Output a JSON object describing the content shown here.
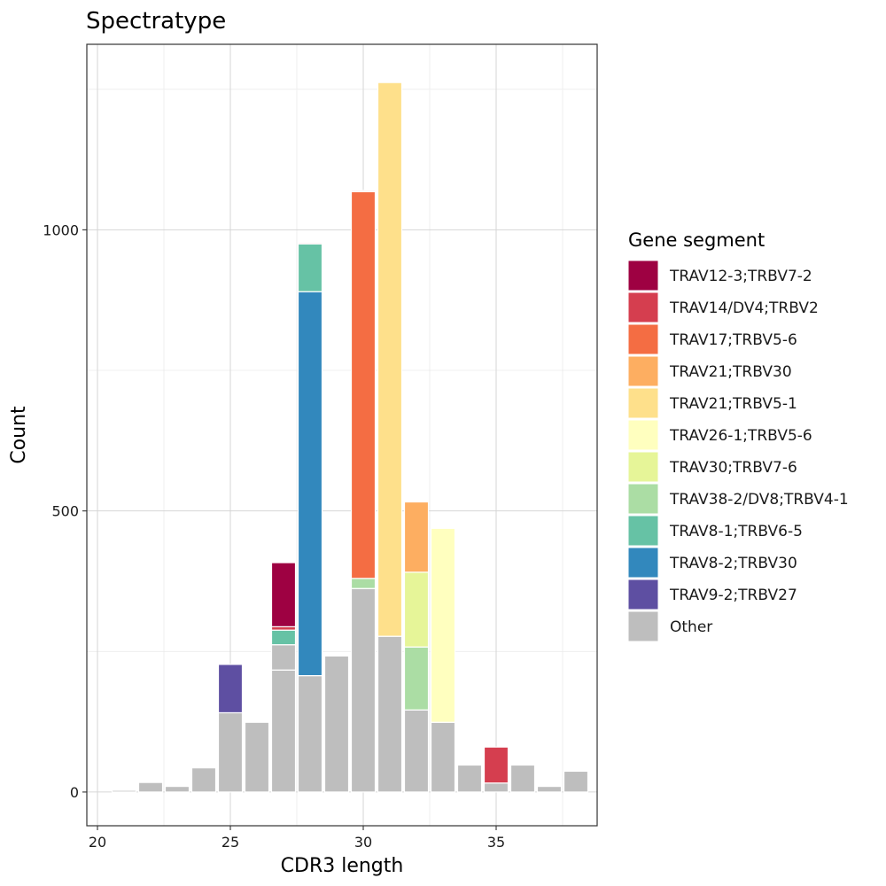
{
  "chart_data": {
    "type": "bar",
    "stacked": true,
    "title": "Spectratype",
    "xlabel": "CDR3 length",
    "ylabel": "Count",
    "xlim": [
      19.6,
      38.8
    ],
    "ylim": [
      -60,
      1330
    ],
    "x_ticks": [
      20,
      25,
      30,
      35
    ],
    "y_ticks": [
      0,
      500,
      1000
    ],
    "grid": true,
    "legend_title": "Gene segment",
    "legend_position": "right",
    "series": [
      {
        "name": "Other",
        "color": "#BEBEBE",
        "points": [
          [
            21,
            3
          ],
          [
            22,
            17
          ],
          [
            23,
            10
          ],
          [
            24,
            43
          ],
          [
            25,
            141
          ],
          [
            26,
            124
          ],
          [
            27,
            217
          ],
          [
            27,
            45
          ],
          [
            28,
            207
          ],
          [
            29,
            242
          ],
          [
            30,
            362
          ],
          [
            31,
            277
          ],
          [
            32,
            146
          ],
          [
            33,
            124
          ],
          [
            34,
            48
          ],
          [
            35,
            16
          ],
          [
            36,
            48
          ],
          [
            37,
            10
          ],
          [
            38,
            37
          ]
        ]
      },
      {
        "name": "TRAV9-2;TRBV27",
        "color": "#5E4FA2",
        "points": [
          [
            25,
            86
          ]
        ]
      },
      {
        "name": "TRAV8-2;TRBV30",
        "color": "#3288BD",
        "points": [
          [
            28,
            683
          ]
        ]
      },
      {
        "name": "TRAV8-1;TRBV6-5",
        "color": "#66C2A5",
        "points": [
          [
            27,
            26
          ],
          [
            28,
            85
          ]
        ]
      },
      {
        "name": "TRAV38-2/DV8;TRBV4-1",
        "color": "#ABDDA4",
        "points": [
          [
            30,
            18
          ],
          [
            32,
            112
          ]
        ]
      },
      {
        "name": "TRAV30;TRBV7-6",
        "color": "#E6F598",
        "points": [
          [
            32,
            133
          ]
        ]
      },
      {
        "name": "TRAV26-1;TRBV5-6",
        "color": "#FFFFBF",
        "points": [
          [
            33,
            345
          ]
        ]
      },
      {
        "name": "TRAV21;TRBV5-1",
        "color": "#FEE08B",
        "points": [
          [
            31,
            985
          ]
        ]
      },
      {
        "name": "TRAV21;TRBV30",
        "color": "#FDAE61",
        "points": [
          [
            32,
            125
          ]
        ]
      },
      {
        "name": "TRAV17;TRBV5-6",
        "color": "#F46D43",
        "points": [
          [
            30,
            688
          ]
        ]
      },
      {
        "name": "TRAV14/DV4;TRBV2",
        "color": "#D53E4F",
        "points": [
          [
            27,
            6
          ],
          [
            28,
            2
          ],
          [
            30,
            2
          ],
          [
            35,
            64
          ]
        ]
      },
      {
        "name": "TRAV12-3;TRBV7-2",
        "color": "#9E0142",
        "points": [
          [
            27,
            114
          ]
        ]
      }
    ],
    "legend_order": [
      "TRAV12-3;TRBV7-2",
      "TRAV14/DV4;TRBV2",
      "TRAV17;TRBV5-6",
      "TRAV21;TRBV30",
      "TRAV21;TRBV5-1",
      "TRAV26-1;TRBV5-6",
      "TRAV30;TRBV7-6",
      "TRAV38-2/DV8;TRBV4-1",
      "TRAV8-1;TRBV6-5",
      "TRAV8-2;TRBV30",
      "TRAV9-2;TRBV27",
      "Other"
    ]
  }
}
